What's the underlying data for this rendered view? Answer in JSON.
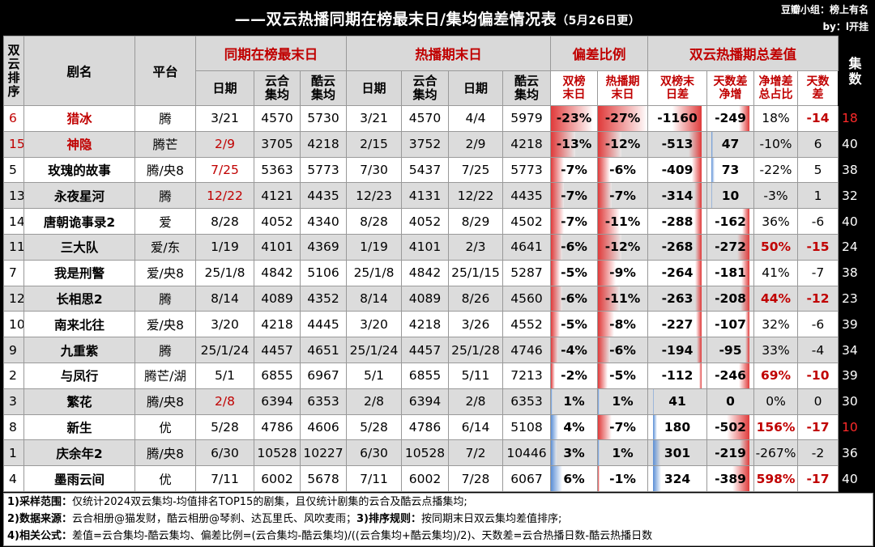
{
  "title": {
    "main": "——双云热播同期在榜最末日/集均偏差情况表",
    "date": "（5月26日更）",
    "credit_line1": "豆瓣小组：榜上有名",
    "credit_line2": "by：l开挂"
  },
  "headers": {
    "rank": "双云排序",
    "name": "剧名",
    "platform": "平台",
    "group_sync": "同期在榜最末日",
    "group_hot": "热播期末日",
    "group_ratio": "偏差比例",
    "group_total": "双云热播期总差值",
    "episodes": "集数",
    "sub": {
      "date": "日期",
      "yunhe": "云合集均",
      "kuyun": "酷云集均",
      "ratio_a": "双榜末日",
      "ratio_b": "热播期末日",
      "diff_a": "双榜末日差",
      "diff_b": "天数差净增",
      "diff_c": "净增差总占比",
      "diff_d": "天数差"
    }
  },
  "rows": [
    {
      "rank": "6",
      "name": "猎冰",
      "platform": "腾",
      "s_date": "3/21",
      "s_yh": "4570",
      "s_ky": "5730",
      "h_date1": "3/21",
      "h_yh": "4570",
      "h_date2": "4/4",
      "h_ky": "5979",
      "r1": "-23%",
      "r2": "-27%",
      "d1": "-1160",
      "d2": "-249",
      "d3": "18%",
      "d4": "-14",
      "eps": "18",
      "hl_rank": true,
      "hl_name": true,
      "hl_date": false,
      "hl_d3": false,
      "hl_d4": true,
      "hl_eps": true,
      "r1v": -23,
      "r2v": -27,
      "d1v": -1160,
      "d2v": -249
    },
    {
      "rank": "15",
      "name": "神隐",
      "platform": "腾芒",
      "s_date": "2/9",
      "s_yh": "3705",
      "s_ky": "4218",
      "h_date1": "2/15",
      "h_yh": "3752",
      "h_date2": "2/9",
      "h_ky": "4218",
      "r1": "-13%",
      "r2": "-12%",
      "d1": "-513",
      "d2": "47",
      "d3": "-10%",
      "d4": "6",
      "eps": "40",
      "hl_rank": true,
      "hl_name": true,
      "hl_date": true,
      "hl_d3": false,
      "hl_d4": false,
      "hl_eps": false,
      "r1v": -13,
      "r2v": -12,
      "d1v": -513,
      "d2v": 47
    },
    {
      "rank": "5",
      "name": "玫瑰的故事",
      "platform": "腾/央8",
      "s_date": "7/25",
      "s_yh": "5363",
      "s_ky": "5773",
      "h_date1": "7/30",
      "h_yh": "5437",
      "h_date2": "7/25",
      "h_ky": "5773",
      "r1": "-7%",
      "r2": "-6%",
      "d1": "-409",
      "d2": "73",
      "d3": "-22%",
      "d4": "5",
      "eps": "38",
      "hl_rank": false,
      "hl_name": false,
      "hl_date": true,
      "hl_d3": false,
      "hl_d4": false,
      "hl_eps": false,
      "r1v": -7,
      "r2v": -6,
      "d1v": -409,
      "d2v": 73
    },
    {
      "rank": "13",
      "name": "永夜星河",
      "platform": "腾",
      "s_date": "12/22",
      "s_yh": "4121",
      "s_ky": "4435",
      "h_date1": "12/23",
      "h_yh": "4131",
      "h_date2": "12/22",
      "h_ky": "4435",
      "r1": "-7%",
      "r2": "-7%",
      "d1": "-314",
      "d2": "10",
      "d3": "-3%",
      "d4": "1",
      "eps": "32",
      "hl_rank": false,
      "hl_name": false,
      "hl_date": true,
      "hl_d3": false,
      "hl_d4": false,
      "hl_eps": false,
      "r1v": -7,
      "r2v": -7,
      "d1v": -314,
      "d2v": 10
    },
    {
      "rank": "14",
      "name": "唐朝诡事录2",
      "platform": "爱",
      "s_date": "8/28",
      "s_yh": "4052",
      "s_ky": "4340",
      "h_date1": "8/28",
      "h_yh": "4052",
      "h_date2": "8/29",
      "h_ky": "4502",
      "r1": "-7%",
      "r2": "-11%",
      "d1": "-288",
      "d2": "-162",
      "d3": "36%",
      "d4": "-6",
      "eps": "40",
      "hl_rank": false,
      "hl_name": false,
      "hl_date": false,
      "hl_d3": false,
      "hl_d4": false,
      "hl_eps": false,
      "r1v": -7,
      "r2v": -11,
      "d1v": -288,
      "d2v": -162
    },
    {
      "rank": "11",
      "name": "三大队",
      "platform": "爱/东",
      "s_date": "1/19",
      "s_yh": "4101",
      "s_ky": "4369",
      "h_date1": "1/19",
      "h_yh": "4101",
      "h_date2": "2/3",
      "h_ky": "4641",
      "r1": "-6%",
      "r2": "-12%",
      "d1": "-268",
      "d2": "-272",
      "d3": "50%",
      "d4": "-15",
      "eps": "24",
      "hl_rank": false,
      "hl_name": false,
      "hl_date": false,
      "hl_d3": true,
      "hl_d4": true,
      "hl_eps": false,
      "r1v": -6,
      "r2v": -12,
      "d1v": -268,
      "d2v": -272
    },
    {
      "rank": "7",
      "name": "我是刑警",
      "platform": "爱/央8",
      "s_date": "25/1/8",
      "s_yh": "4842",
      "s_ky": "5106",
      "h_date1": "25/1/8",
      "h_yh": "4842",
      "h_date2": "25/1/15",
      "h_ky": "5287",
      "r1": "-5%",
      "r2": "-9%",
      "d1": "-264",
      "d2": "-181",
      "d3": "41%",
      "d4": "-7",
      "eps": "38",
      "hl_rank": false,
      "hl_name": false,
      "hl_date": false,
      "hl_d3": false,
      "hl_d4": false,
      "hl_eps": false,
      "r1v": -5,
      "r2v": -9,
      "d1v": -264,
      "d2v": -181
    },
    {
      "rank": "12",
      "name": "长相思2",
      "platform": "腾",
      "s_date": "8/14",
      "s_yh": "4089",
      "s_ky": "4352",
      "h_date1": "8/14",
      "h_yh": "4089",
      "h_date2": "8/26",
      "h_ky": "4560",
      "r1": "-6%",
      "r2": "-11%",
      "d1": "-263",
      "d2": "-208",
      "d3": "44%",
      "d4": "-12",
      "eps": "23",
      "hl_rank": false,
      "hl_name": false,
      "hl_date": false,
      "hl_d3": true,
      "hl_d4": true,
      "hl_eps": false,
      "r1v": -6,
      "r2v": -11,
      "d1v": -263,
      "d2v": -208
    },
    {
      "rank": "10",
      "name": "南来北往",
      "platform": "爱/央8",
      "s_date": "3/20",
      "s_yh": "4218",
      "s_ky": "4445",
      "h_date1": "3/20",
      "h_yh": "4218",
      "h_date2": "3/26",
      "h_ky": "4552",
      "r1": "-5%",
      "r2": "-8%",
      "d1": "-227",
      "d2": "-107",
      "d3": "32%",
      "d4": "-6",
      "eps": "39",
      "hl_rank": false,
      "hl_name": false,
      "hl_date": false,
      "hl_d3": false,
      "hl_d4": false,
      "hl_eps": false,
      "r1v": -5,
      "r2v": -8,
      "d1v": -227,
      "d2v": -107
    },
    {
      "rank": "9",
      "name": "九重紫",
      "platform": "腾",
      "s_date": "25/1/24",
      "s_yh": "4457",
      "s_ky": "4651",
      "h_date1": "25/1/24",
      "h_yh": "4457",
      "h_date2": "25/1/28",
      "h_ky": "4746",
      "r1": "-4%",
      "r2": "-6%",
      "d1": "-194",
      "d2": "-95",
      "d3": "33%",
      "d4": "-4",
      "eps": "34",
      "hl_rank": false,
      "hl_name": false,
      "hl_date": false,
      "hl_d3": false,
      "hl_d4": false,
      "hl_eps": false,
      "r1v": -4,
      "r2v": -6,
      "d1v": -194,
      "d2v": -95
    },
    {
      "rank": "2",
      "name": "与凤行",
      "platform": "腾芒/湖",
      "s_date": "5/1",
      "s_yh": "6855",
      "s_ky": "6967",
      "h_date1": "5/1",
      "h_yh": "6855",
      "h_date2": "5/11",
      "h_ky": "7213",
      "r1": "-2%",
      "r2": "-5%",
      "d1": "-112",
      "d2": "-246",
      "d3": "69%",
      "d4": "-10",
      "eps": "39",
      "hl_rank": false,
      "hl_name": false,
      "hl_date": false,
      "hl_d3": true,
      "hl_d4": true,
      "hl_eps": false,
      "r1v": -2,
      "r2v": -5,
      "d1v": -112,
      "d2v": -246
    },
    {
      "rank": "3",
      "name": "繁花",
      "platform": "腾/央8",
      "s_date": "2/8",
      "s_yh": "6394",
      "s_ky": "6353",
      "h_date1": "2/8",
      "h_yh": "6394",
      "h_date2": "2/8",
      "h_ky": "6353",
      "r1": "1%",
      "r2": "1%",
      "d1": "41",
      "d2": "0",
      "d3": "0%",
      "d4": "0",
      "eps": "30",
      "hl_rank": false,
      "hl_name": false,
      "hl_date": true,
      "hl_d3": false,
      "hl_d4": false,
      "hl_eps": false,
      "r1v": 1,
      "r2v": 1,
      "d1v": 41,
      "d2v": 0
    },
    {
      "rank": "8",
      "name": "新生",
      "platform": "优",
      "s_date": "5/28",
      "s_yh": "4786",
      "s_ky": "4606",
      "h_date1": "5/28",
      "h_yh": "4786",
      "h_date2": "6/14",
      "h_ky": "5108",
      "r1": "4%",
      "r2": "-7%",
      "d1": "180",
      "d2": "-502",
      "d3": "156%",
      "d4": "-17",
      "eps": "10",
      "hl_rank": false,
      "hl_name": false,
      "hl_date": false,
      "hl_d3": true,
      "hl_d4": true,
      "hl_eps": true,
      "r1v": 4,
      "r2v": -7,
      "d1v": 180,
      "d2v": -502
    },
    {
      "rank": "1",
      "name": "庆余年2",
      "platform": "腾/央8",
      "s_date": "6/30",
      "s_yh": "10528",
      "s_ky": "10227",
      "h_date1": "6/30",
      "h_yh": "10528",
      "h_date2": "7/2",
      "h_ky": "10446",
      "r1": "3%",
      "r2": "1%",
      "d1": "301",
      "d2": "-219",
      "d3": "-267%",
      "d4": "-2",
      "eps": "36",
      "hl_rank": false,
      "hl_name": false,
      "hl_date": false,
      "hl_d3": false,
      "hl_d4": false,
      "hl_eps": false,
      "r1v": 3,
      "r2v": 1,
      "d1v": 301,
      "d2v": -219
    },
    {
      "rank": "4",
      "name": "墨雨云间",
      "platform": "优",
      "s_date": "7/11",
      "s_yh": "6002",
      "s_ky": "5678",
      "h_date1": "7/11",
      "h_yh": "6002",
      "h_date2": "7/28",
      "h_ky": "6067",
      "r1": "6%",
      "r2": "-1%",
      "d1": "324",
      "d2": "-389",
      "d3": "598%",
      "d4": "-17",
      "eps": "40",
      "hl_rank": false,
      "hl_name": false,
      "hl_date": false,
      "hl_d3": true,
      "hl_d4": true,
      "hl_eps": false,
      "r1v": 6,
      "r2v": -1,
      "d1v": 324,
      "d2v": -389
    }
  ],
  "footer": {
    "line1_label": "1)采样范围：",
    "line1": "仅统计2024双云集均-均值排名TOP15的剧集，且仅统计剧集的云合及酷云点播集均;",
    "line2_label": "2)数据来源：",
    "line2": "云合相册@猫发财，酷云相册@琴刹、达瓦里氏、风吹麦雨；",
    "line2_label_b": "3)排序规则：",
    "line2_b": "按同期末日双云集均差值排序;",
    "line3_label": "4)相关公式：",
    "line3": "差值=云合集均-酷云集均、偏差比例=(云合集均-酷云集均)/((云合集均+酷云集均)/2)、天数差=云合热播日数-酷云热播日数"
  },
  "colors": {
    "red": "#c00000",
    "neg_bar": "#e03a3a",
    "pos_bar": "#5b8fd6"
  }
}
